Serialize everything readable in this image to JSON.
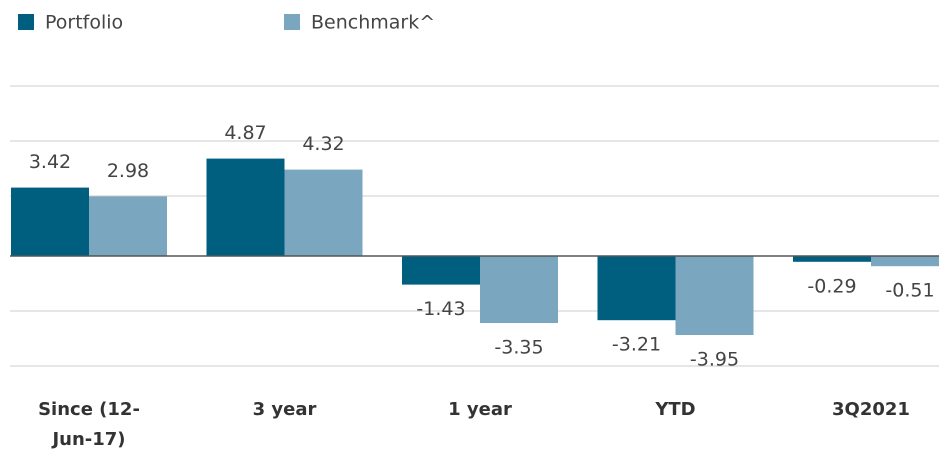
{
  "chart_data": {
    "type": "bar",
    "categories": [
      "Since (12-Jun-17)",
      "3 year",
      "1 year",
      "YTD",
      "3Q2021"
    ],
    "series": [
      {
        "name": "Portfolio",
        "color": "#005f7f",
        "values": [
          3.42,
          4.87,
          -1.43,
          -3.21,
          -0.29
        ]
      },
      {
        "name": "Benchmark^",
        "color": "#7aa7bf",
        "values": [
          2.98,
          4.32,
          -3.35,
          -3.95,
          -0.51
        ]
      }
    ],
    "ylim": [
      -6,
      8.5
    ],
    "yticks": [
      -5.5,
      -2.75,
      0,
      3,
      5.75,
      8.5
    ],
    "grid": true
  }
}
